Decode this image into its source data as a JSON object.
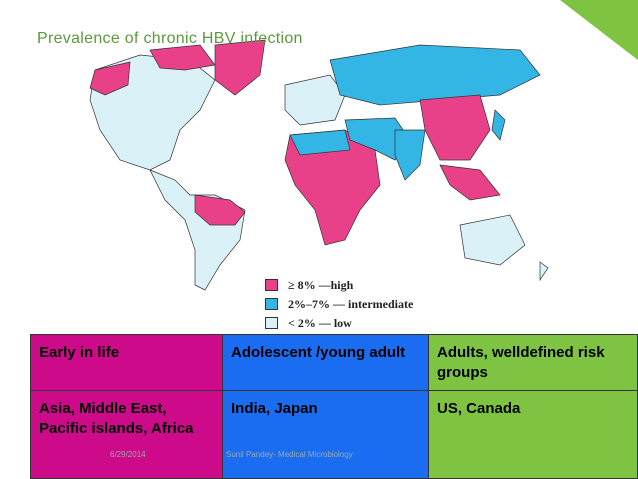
{
  "header": {
    "title": "Prevalence of chronic HBV infection"
  },
  "legend": {
    "items": [
      "≥ 8% —high",
      "2%–7% — intermediate",
      "< 2% — low"
    ]
  },
  "table": {
    "rows": [
      [
        "Early in life",
        "Adolescent /young adult",
        "Adults, welldefined risk groups"
      ],
      [
        "Asia, Middle East, Pacific islands, Africa",
        "India, Japan",
        "US, Canada"
      ]
    ]
  },
  "footer": {
    "date": "6/29/2014",
    "author": "Sunil Pandey- Medical Microbiology"
  }
}
